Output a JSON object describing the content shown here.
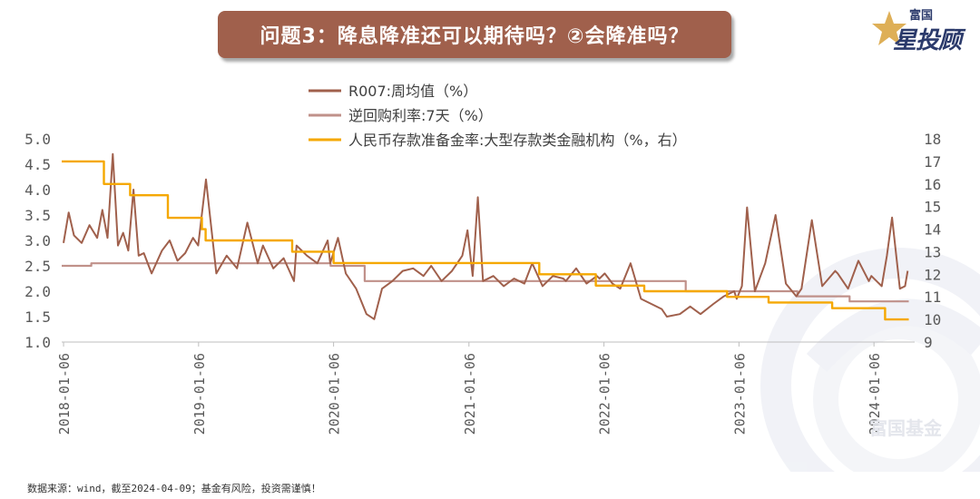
{
  "title": "问题3：降息降准还可以期待吗？②会降准吗？",
  "logo": {
    "small": "富国",
    "big": "星投顾"
  },
  "watermark": "富国基金",
  "source": "数据来源：wind，截至2024-04-09；基金有风险，投资需谨慎！",
  "colors": {
    "r007": "#a0604c",
    "repo": "#c0918a",
    "rrr": "#f5a800",
    "banner": "#a0604c"
  },
  "chart_data": {
    "type": "line",
    "title": "",
    "legend_position": "top-center",
    "grid": false,
    "x_labels": [
      "2018-01-06",
      "2019-01-06",
      "2020-01-06",
      "2021-01-06",
      "2022-01-06",
      "2023-01-06",
      "2024-01-06"
    ],
    "y_left": {
      "ylim": [
        1.0,
        5.0
      ],
      "ticks": [
        "1.0",
        "1.5",
        "2.0",
        "2.5",
        "3.0",
        "3.5",
        "4.0",
        "4.5",
        "5.0"
      ]
    },
    "y_right": {
      "ylim": [
        9,
        18
      ],
      "ticks": [
        "9",
        "10",
        "11",
        "12",
        "13",
        "14",
        "15",
        "16",
        "17",
        "18"
      ]
    },
    "series": [
      {
        "name": "R007:周均值（%）",
        "axis": "left",
        "x": [
          "2018-01-06",
          "2018-01-20",
          "2018-02-03",
          "2018-02-24",
          "2018-03-17",
          "2018-04-07",
          "2018-04-21",
          "2018-05-05",
          "2018-05-19",
          "2018-06-02",
          "2018-06-16",
          "2018-06-30",
          "2018-07-14",
          "2018-07-28",
          "2018-08-11",
          "2018-09-01",
          "2018-09-29",
          "2018-10-20",
          "2018-11-10",
          "2018-12-01",
          "2018-12-22",
          "2019-01-05",
          "2019-01-26",
          "2019-02-23",
          "2019-03-23",
          "2019-04-20",
          "2019-05-18",
          "2019-06-15",
          "2019-06-29",
          "2019-07-27",
          "2019-08-24",
          "2019-09-21",
          "2019-09-28",
          "2019-10-26",
          "2019-11-23",
          "2019-12-21",
          "2019-12-28",
          "2020-01-18",
          "2020-02-08",
          "2020-03-07",
          "2020-04-04",
          "2020-04-25",
          "2020-05-16",
          "2020-06-13",
          "2020-07-11",
          "2020-08-08",
          "2020-09-05",
          "2020-09-26",
          "2020-10-24",
          "2020-11-21",
          "2020-12-19",
          "2021-01-02",
          "2021-01-16",
          "2021-01-30",
          "2021-02-13",
          "2021-03-13",
          "2021-04-10",
          "2021-05-08",
          "2021-06-05",
          "2021-06-26",
          "2021-07-24",
          "2021-08-21",
          "2021-09-18",
          "2021-09-25",
          "2021-10-23",
          "2021-11-20",
          "2021-12-18",
          "2021-12-25",
          "2022-01-08",
          "2022-01-29",
          "2022-02-19",
          "2022-03-19",
          "2022-04-16",
          "2022-05-14",
          "2022-06-11",
          "2022-06-25",
          "2022-07-30",
          "2022-08-27",
          "2022-09-24",
          "2022-10-29",
          "2022-11-26",
          "2022-12-24",
          "2022-12-31",
          "2023-01-14",
          "2023-01-28",
          "2023-02-18",
          "2023-03-18",
          "2023-04-15",
          "2023-05-13",
          "2023-06-10",
          "2023-06-24",
          "2023-07-22",
          "2023-08-19",
          "2023-09-23",
          "2023-09-30",
          "2023-10-28",
          "2023-11-25",
          "2023-12-23",
          "2023-12-30",
          "2024-01-13",
          "2024-01-27",
          "2024-02-10",
          "2024-02-24",
          "2024-03-16",
          "2024-03-30",
          "2024-04-06"
        ],
        "values": [
          2.95,
          3.55,
          3.1,
          2.95,
          3.3,
          3.05,
          3.6,
          3.05,
          4.7,
          2.9,
          3.15,
          2.8,
          4.0,
          2.7,
          2.75,
          2.35,
          2.8,
          3.0,
          2.6,
          2.75,
          3.05,
          2.9,
          4.2,
          2.35,
          2.7,
          2.45,
          3.35,
          2.55,
          2.9,
          2.45,
          2.65,
          2.2,
          2.9,
          2.7,
          2.55,
          3.0,
          2.55,
          3.05,
          2.35,
          2.05,
          1.55,
          1.45,
          2.05,
          2.2,
          2.4,
          2.45,
          2.3,
          2.5,
          2.2,
          2.4,
          2.7,
          3.2,
          2.3,
          3.85,
          2.2,
          2.3,
          2.1,
          2.25,
          2.15,
          2.55,
          2.1,
          2.3,
          2.25,
          2.2,
          2.45,
          2.15,
          2.3,
          2.25,
          2.35,
          2.15,
          2.05,
          2.55,
          1.85,
          1.75,
          1.65,
          1.5,
          1.55,
          1.7,
          1.55,
          1.75,
          1.9,
          2.0,
          1.85,
          2.1,
          3.65,
          2.0,
          2.55,
          3.5,
          2.15,
          1.9,
          2.05,
          3.4,
          2.1,
          2.4,
          2.35,
          2.05,
          2.6,
          2.2,
          2.3,
          2.2,
          2.1,
          2.7,
          3.45,
          2.05,
          2.1,
          2.4
        ]
      },
      {
        "name": "逆回购利率:7天（%）",
        "axis": "left",
        "x": [
          "2018-01-01",
          "2018-03-22",
          "2019-12-29",
          "2020-03-30",
          "2021-12-31",
          "2022-08-15",
          "2023-06-13",
          "2023-11-01",
          "2024-04-09"
        ],
        "values": [
          2.5,
          2.55,
          2.5,
          2.2,
          2.2,
          2.0,
          1.9,
          1.8,
          1.8
        ]
      },
      {
        "name": "人民币存款准备金率:大型存款类金融机构（%，右）",
        "axis": "right",
        "x": [
          "2018-01-01",
          "2018-04-25",
          "2018-07-05",
          "2018-10-15",
          "2019-01-15",
          "2019-01-25",
          "2019-09-16",
          "2020-01-06",
          "2021-07-15",
          "2021-12-15",
          "2022-04-25",
          "2022-12-05",
          "2023-03-27",
          "2023-09-15",
          "2024-02-05",
          "2024-04-09"
        ],
        "values": [
          17.0,
          16.0,
          15.5,
          14.5,
          14.0,
          13.5,
          13.0,
          12.5,
          12.0,
          11.5,
          11.25,
          11.0,
          10.75,
          10.5,
          10.0,
          10.0
        ]
      }
    ]
  }
}
